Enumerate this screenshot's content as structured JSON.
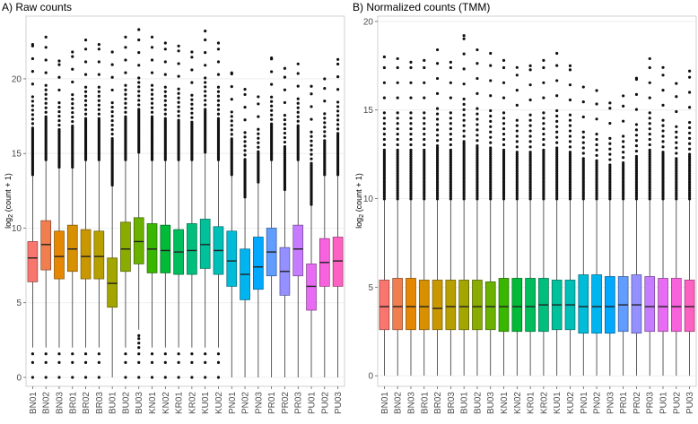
{
  "chart_data": [
    {
      "type": "boxplot",
      "title": "A) Raw counts",
      "ylabel": "log2(count + 1)",
      "xlabel": "",
      "ylim": [
        0,
        24
      ],
      "yticks": [
        0,
        5,
        10,
        15,
        20
      ],
      "grid": true,
      "categories": [
        "BN01",
        "BN02",
        "BN03",
        "BR01",
        "BR02",
        "BR03",
        "BU01",
        "BU02",
        "BU03",
        "KN01",
        "KN02",
        "KR01",
        "KR02",
        "KU01",
        "KU02",
        "PN01",
        "PN02",
        "PN03",
        "PR01",
        "PR02",
        "PR03",
        "PU01",
        "PU02",
        "PU03"
      ],
      "colors": [
        "#F8766D",
        "#F07E4E",
        "#E58700",
        "#D79000",
        "#C99800",
        "#B79F00",
        "#A3A500",
        "#8AAB00",
        "#6BB100",
        "#39B600",
        "#00BA38",
        "#00BD5C",
        "#00BF7D",
        "#00C19A",
        "#00BFB7",
        "#00BCD8",
        "#00B4F0",
        "#00A9FF",
        "#619CFF",
        "#9590FF",
        "#C77CFF",
        "#E76BF3",
        "#F962DD",
        "#FF61C3"
      ],
      "stats": [
        {
          "q1": 6.4,
          "median": 8.0,
          "q3": 9.1,
          "whisker_low": 2.0,
          "whisker_high": 13.5,
          "outlier_max": 22.3
        },
        {
          "q1": 7.2,
          "median": 8.9,
          "q3": 10.5,
          "whisker_low": 2.0,
          "whisker_high": 14.5,
          "outlier_max": 22.8
        },
        {
          "q1": 6.6,
          "median": 8.1,
          "q3": 9.8,
          "whisker_low": 2.0,
          "whisker_high": 14.0,
          "outlier_max": 21.2
        },
        {
          "q1": 7.1,
          "median": 8.6,
          "q3": 10.2,
          "whisker_low": 2.0,
          "whisker_high": 14.0,
          "outlier_max": 21.8
        },
        {
          "q1": 6.6,
          "median": 8.1,
          "q3": 9.9,
          "whisker_low": 2.0,
          "whisker_high": 14.5,
          "outlier_max": 22.6
        },
        {
          "q1": 6.6,
          "median": 8.1,
          "q3": 9.8,
          "whisker_low": 2.0,
          "whisker_high": 14.5,
          "outlier_max": 22.3
        },
        {
          "q1": 4.7,
          "median": 6.3,
          "q3": 8.0,
          "whisker_low": 0.0,
          "whisker_high": 12.8,
          "outlier_max": 21.8
        },
        {
          "q1": 7.1,
          "median": 8.6,
          "q3": 10.4,
          "whisker_low": 2.0,
          "whisker_high": 14.5,
          "outlier_max": 22.8
        },
        {
          "q1": 7.6,
          "median": 9.1,
          "q3": 10.7,
          "whisker_low": 3.2,
          "whisker_high": 15.0,
          "outlier_max": 23.3
        },
        {
          "q1": 7.0,
          "median": 8.6,
          "q3": 10.3,
          "whisker_low": 2.0,
          "whisker_high": 14.5,
          "outlier_max": 22.8
        },
        {
          "q1": 7.0,
          "median": 8.5,
          "q3": 10.2,
          "whisker_low": 2.0,
          "whisker_high": 14.5,
          "outlier_max": 22.4
        },
        {
          "q1": 6.9,
          "median": 8.4,
          "q3": 9.9,
          "whisker_low": 2.0,
          "whisker_high": 14.5,
          "outlier_max": 22.2
        },
        {
          "q1": 6.9,
          "median": 8.5,
          "q3": 10.3,
          "whisker_low": 2.0,
          "whisker_high": 14.5,
          "outlier_max": 21.8
        },
        {
          "q1": 7.3,
          "median": 8.9,
          "q3": 10.6,
          "whisker_low": 2.0,
          "whisker_high": 15.0,
          "outlier_max": 23.2
        },
        {
          "q1": 6.9,
          "median": 8.5,
          "q3": 10.1,
          "whisker_low": 2.0,
          "whisker_high": 14.5,
          "outlier_max": 22.4
        },
        {
          "q1": 6.1,
          "median": 7.8,
          "q3": 9.8,
          "whisker_low": 0.0,
          "whisker_high": 13.5,
          "outlier_max": 20.4
        },
        {
          "q1": 5.2,
          "median": 6.9,
          "q3": 8.6,
          "whisker_low": 0.0,
          "whisker_high": 12.0,
          "outlier_max": 19.3
        },
        {
          "q1": 5.9,
          "median": 7.4,
          "q3": 9.4,
          "whisker_low": 0.0,
          "whisker_high": 13.0,
          "outlier_max": 18.8
        },
        {
          "q1": 6.8,
          "median": 8.4,
          "q3": 10.0,
          "whisker_low": 0.0,
          "whisker_high": 14.5,
          "outlier_max": 21.4
        },
        {
          "q1": 5.5,
          "median": 7.1,
          "q3": 8.7,
          "whisker_low": 0.0,
          "whisker_high": 12.5,
          "outlier_max": 20.7
        },
        {
          "q1": 6.8,
          "median": 8.6,
          "q3": 10.2,
          "whisker_low": 0.0,
          "whisker_high": 14.5,
          "outlier_max": 21.0
        },
        {
          "q1": 4.5,
          "median": 6.1,
          "q3": 7.6,
          "whisker_low": 0.0,
          "whisker_high": 11.5,
          "outlier_max": 19.5
        },
        {
          "q1": 6.1,
          "median": 7.7,
          "q3": 9.3,
          "whisker_low": 0.0,
          "whisker_high": 13.5,
          "outlier_max": 20.0
        },
        {
          "q1": 6.1,
          "median": 7.8,
          "q3": 9.4,
          "whisker_low": 0.0,
          "whisker_high": 13.5,
          "outlier_max": 21.3
        }
      ]
    },
    {
      "type": "boxplot",
      "title": "B) Normalized counts (TMM)",
      "ylabel": "log2(count + 1)",
      "xlabel": "",
      "ylim": [
        0,
        20
      ],
      "yticks": [
        0,
        5,
        10,
        15,
        20
      ],
      "grid": true,
      "categories": [
        "BN01",
        "BN02",
        "BN03",
        "BR01",
        "BR02",
        "BR03",
        "BU01",
        "BU02",
        "BU03",
        "KN01",
        "KN02",
        "KR01",
        "KR02",
        "KU01",
        "KU02",
        "PN01",
        "PN02",
        "PN03",
        "PR01",
        "PR02",
        "PR03",
        "PU01",
        "PU02",
        "PU03"
      ],
      "colors": [
        "#F8766D",
        "#F07E4E",
        "#E58700",
        "#D79000",
        "#C99800",
        "#B79F00",
        "#A3A500",
        "#8AAB00",
        "#6BB100",
        "#39B600",
        "#00BA38",
        "#00BD5C",
        "#00BF7D",
        "#00C19A",
        "#00BFB7",
        "#00BCD8",
        "#00B4F0",
        "#00A9FF",
        "#619CFF",
        "#9590FF",
        "#C77CFF",
        "#E76BF3",
        "#F962DD",
        "#FF61C3"
      ],
      "stats": [
        {
          "q1": 2.6,
          "median": 3.9,
          "q3": 5.4,
          "whisker_low": 0.0,
          "whisker_high": 9.9,
          "outlier_max": 18.0
        },
        {
          "q1": 2.6,
          "median": 3.9,
          "q3": 5.5,
          "whisker_low": 0.0,
          "whisker_high": 9.9,
          "outlier_max": 17.9
        },
        {
          "q1": 2.6,
          "median": 3.9,
          "q3": 5.5,
          "whisker_low": 0.0,
          "whisker_high": 9.9,
          "outlier_max": 17.7
        },
        {
          "q1": 2.6,
          "median": 3.9,
          "q3": 5.4,
          "whisker_low": 0.0,
          "whisker_high": 9.9,
          "outlier_max": 17.8
        },
        {
          "q1": 2.6,
          "median": 3.8,
          "q3": 5.4,
          "whisker_low": 0.0,
          "whisker_high": 9.9,
          "outlier_max": 18.4
        },
        {
          "q1": 2.6,
          "median": 3.9,
          "q3": 5.4,
          "whisker_low": 0.0,
          "whisker_high": 9.9,
          "outlier_max": 17.7
        },
        {
          "q1": 2.6,
          "median": 3.9,
          "q3": 5.4,
          "whisker_low": 0.0,
          "whisker_high": 9.9,
          "outlier_max": 19.2
        },
        {
          "q1": 2.6,
          "median": 3.9,
          "q3": 5.4,
          "whisker_low": 0.0,
          "whisker_high": 9.9,
          "outlier_max": 18.4
        },
        {
          "q1": 2.6,
          "median": 3.9,
          "q3": 5.3,
          "whisker_low": 0.0,
          "whisker_high": 9.9,
          "outlier_max": 18.2
        },
        {
          "q1": 2.5,
          "median": 3.9,
          "q3": 5.5,
          "whisker_low": 0.0,
          "whisker_high": 9.9,
          "outlier_max": 17.8
        },
        {
          "q1": 2.5,
          "median": 3.9,
          "q3": 5.5,
          "whisker_low": 0.0,
          "whisker_high": 9.9,
          "outlier_max": 17.4
        },
        {
          "q1": 2.5,
          "median": 3.9,
          "q3": 5.5,
          "whisker_low": 0.0,
          "whisker_high": 9.9,
          "outlier_max": 17.5
        },
        {
          "q1": 2.5,
          "median": 4.0,
          "q3": 5.5,
          "whisker_low": 0.0,
          "whisker_high": 9.9,
          "outlier_max": 17.8
        },
        {
          "q1": 2.6,
          "median": 4.0,
          "q3": 5.4,
          "whisker_low": 0.0,
          "whisker_high": 9.9,
          "outlier_max": 18.2
        },
        {
          "q1": 2.6,
          "median": 4.0,
          "q3": 5.4,
          "whisker_low": 0.0,
          "whisker_high": 9.9,
          "outlier_max": 17.5
        },
        {
          "q1": 2.4,
          "median": 3.9,
          "q3": 5.7,
          "whisker_low": 0.0,
          "whisker_high": 9.9,
          "outlier_max": 16.3
        },
        {
          "q1": 2.4,
          "median": 3.9,
          "q3": 5.7,
          "whisker_low": 0.0,
          "whisker_high": 9.9,
          "outlier_max": 16.1
        },
        {
          "q1": 2.4,
          "median": 3.9,
          "q3": 5.6,
          "whisker_low": 0.0,
          "whisker_high": 9.9,
          "outlier_max": 15.4
        },
        {
          "q1": 2.5,
          "median": 4.0,
          "q3": 5.6,
          "whisker_low": 0.0,
          "whisker_high": 9.9,
          "outlier_max": 15.8
        },
        {
          "q1": 2.4,
          "median": 4.0,
          "q3": 5.7,
          "whisker_low": 0.0,
          "whisker_high": 9.9,
          "outlier_max": 16.8
        },
        {
          "q1": 2.5,
          "median": 3.9,
          "q3": 5.6,
          "whisker_low": 0.0,
          "whisker_high": 9.9,
          "outlier_max": 17.9
        },
        {
          "q1": 2.5,
          "median": 3.9,
          "q3": 5.5,
          "whisker_low": 0.0,
          "whisker_high": 9.9,
          "outlier_max": 17.4
        },
        {
          "q1": 2.5,
          "median": 3.9,
          "q3": 5.5,
          "whisker_low": 0.0,
          "whisker_high": 9.9,
          "outlier_max": 16.5
        },
        {
          "q1": 2.5,
          "median": 3.9,
          "q3": 5.4,
          "whisker_low": 0.0,
          "whisker_high": 9.9,
          "outlier_max": 17.2
        }
      ]
    }
  ]
}
